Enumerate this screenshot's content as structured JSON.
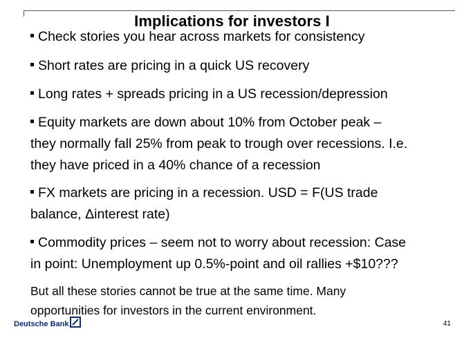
{
  "slide": {
    "title": "Implications for investors I",
    "bullets": [
      {
        "lines": [
          "Check stories you hear across markets for consistency"
        ]
      },
      {
        "lines": [
          "Short rates are pricing in a quick US recovery"
        ]
      },
      {
        "lines": [
          "Long rates + spreads pricing in a US recession/depression"
        ]
      },
      {
        "lines": [
          "Equity markets are down about 10% from October peak –",
          "they normally fall 25% from peak to trough over recessions. I.e.",
          "they have priced in a 40% chance of a recession"
        ]
      },
      {
        "lines": [
          "FX markets are pricing in a recession. USD = F(US trade",
          "balance, Δinterest rate)"
        ]
      },
      {
        "lines": [
          "Commodity prices – seem not to worry about recession: Case",
          "in point: Unemployment up 0.5%-point and oil rallies +$10???"
        ]
      }
    ],
    "summary_lines": [
      "But all these stories cannot be true at the same time. Many",
      "opportunities for investors in the current environment."
    ]
  },
  "footer": {
    "brand": "Deutsche Bank",
    "page_number": "41",
    "brand_color": "#0b2a7a"
  }
}
